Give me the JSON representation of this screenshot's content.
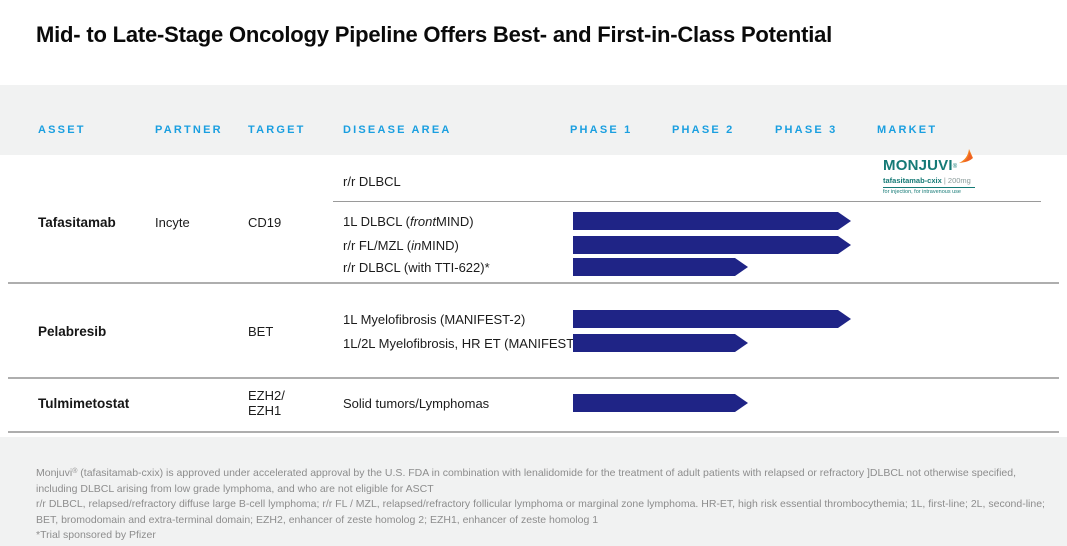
{
  "title": "Mid- to Late-Stage Oncology Pipeline Offers Best- and First-in-Class Potential",
  "header": {
    "columns": [
      {
        "label": "ASSET"
      },
      {
        "label": "PARTNER"
      },
      {
        "label": "TARGET"
      },
      {
        "label": "DISEASE AREA"
      },
      {
        "label": "PHASE 1"
      },
      {
        "label": "PHASE 2"
      },
      {
        "label": "PHASE 3"
      },
      {
        "label": "MARKET"
      }
    ]
  },
  "rows": [
    {
      "asset": "Tafasitamab",
      "partner": "Incyte",
      "target": "CD19",
      "programs": [
        {
          "label": "r/r DLBCL"
        },
        {
          "pre": "1L DLBCL (",
          "italic": "front",
          "post": "MIND)"
        },
        {
          "pre": "r/r FL/MZL (",
          "italic": "in",
          "post": "MIND)"
        },
        {
          "label": "r/r DLBCL (with TTI-622)*"
        }
      ]
    },
    {
      "asset": "Pelabresib",
      "partner": "",
      "target": "BET",
      "programs": [
        {
          "label": "1L Myelofibrosis (MANIFEST-2)"
        },
        {
          "label": "1L/2L Myelofibrosis, HR ET (MANIFEST)"
        }
      ]
    },
    {
      "asset": "Tulmimetostat",
      "partner": "",
      "target": "EZH2/\nEZH1",
      "programs": [
        {
          "label": "Solid tumors/Lymphomas"
        }
      ]
    }
  ],
  "market_logo": {
    "brand": "MONJUVI",
    "reg": "®",
    "name": "tafasitamab-cxix",
    "sep": " | ",
    "dose": "200mg",
    "small": "for injection, for intravenous use"
  },
  "footnotes": {
    "fn1_brand": "Monjuvi",
    "fn1_reg": "®",
    "fn1_rest": " (tafasitamab-cxix) is approved under accelerated approval by the U.S. FDA in combination with lenalidomide for the treatment of adult patients with relapsed or refractory ]DLBCL not otherwise specified, including DLBCL arising from low grade lymphoma, and who are not eligible for ASCT",
    "fn2": "r/r DLBCL, relapsed/refractory diffuse large B-cell lymphoma; r/r FL / MZL, relapsed/refractory follicular lymphoma or marginal zone lymphoma. HR-ET, high risk essential thrombocythemia; 1L, first-line; 2L, second-line; BET, bromodomain and extra-terminal domain; EZH2, enhancer of zeste homolog 2; EZH1, enhancer of zeste homolog 1",
    "fn3": "*Trial sponsored by Pfizer"
  },
  "colors": {
    "header_blue": "#1a9fe0",
    "bar_navy": "#1f2486",
    "monjuvi_teal": "#157a76",
    "monjuvi_orange": "#f58220",
    "band_gray": "#f1f2f2",
    "footnote_gray": "#8d8d8d"
  },
  "chart_data": {
    "type": "bar",
    "orientation": "horizontal",
    "title": "Mid- to Late-Stage Oncology Pipeline Offers Best- and First-in-Class Potential",
    "x_axis": {
      "labels": [
        "Phase 1",
        "Phase 2",
        "Phase 3",
        "Market"
      ]
    },
    "marketed": [
      {
        "asset": "Tafasitamab",
        "program": "r/r DLBCL",
        "status": "On market as MONJUVI (tafasitamab-cxix) 200mg"
      }
    ],
    "bars": [
      {
        "asset": "Tafasitamab",
        "program": "1L DLBCL (frontMIND)",
        "start_phase": 1,
        "end_phase": 3.7
      },
      {
        "asset": "Tafasitamab",
        "program": "r/r FL/MZL (inMIND)",
        "start_phase": 1,
        "end_phase": 3.7
      },
      {
        "asset": "Tafasitamab",
        "program": "r/r DLBCL (with TTI-622)*",
        "start_phase": 1,
        "end_phase": 2.7
      },
      {
        "asset": "Pelabresib",
        "program": "1L Myelofibrosis (MANIFEST-2)",
        "start_phase": 1,
        "end_phase": 3.7
      },
      {
        "asset": "Pelabresib",
        "program": "1L/2L Myelofibrosis, HR ET (MANIFEST)",
        "start_phase": 1,
        "end_phase": 2.7
      },
      {
        "asset": "Tulmimetostat",
        "program": "Solid tumors/Lymphomas",
        "start_phase": 1,
        "end_phase": 2.7
      }
    ]
  }
}
